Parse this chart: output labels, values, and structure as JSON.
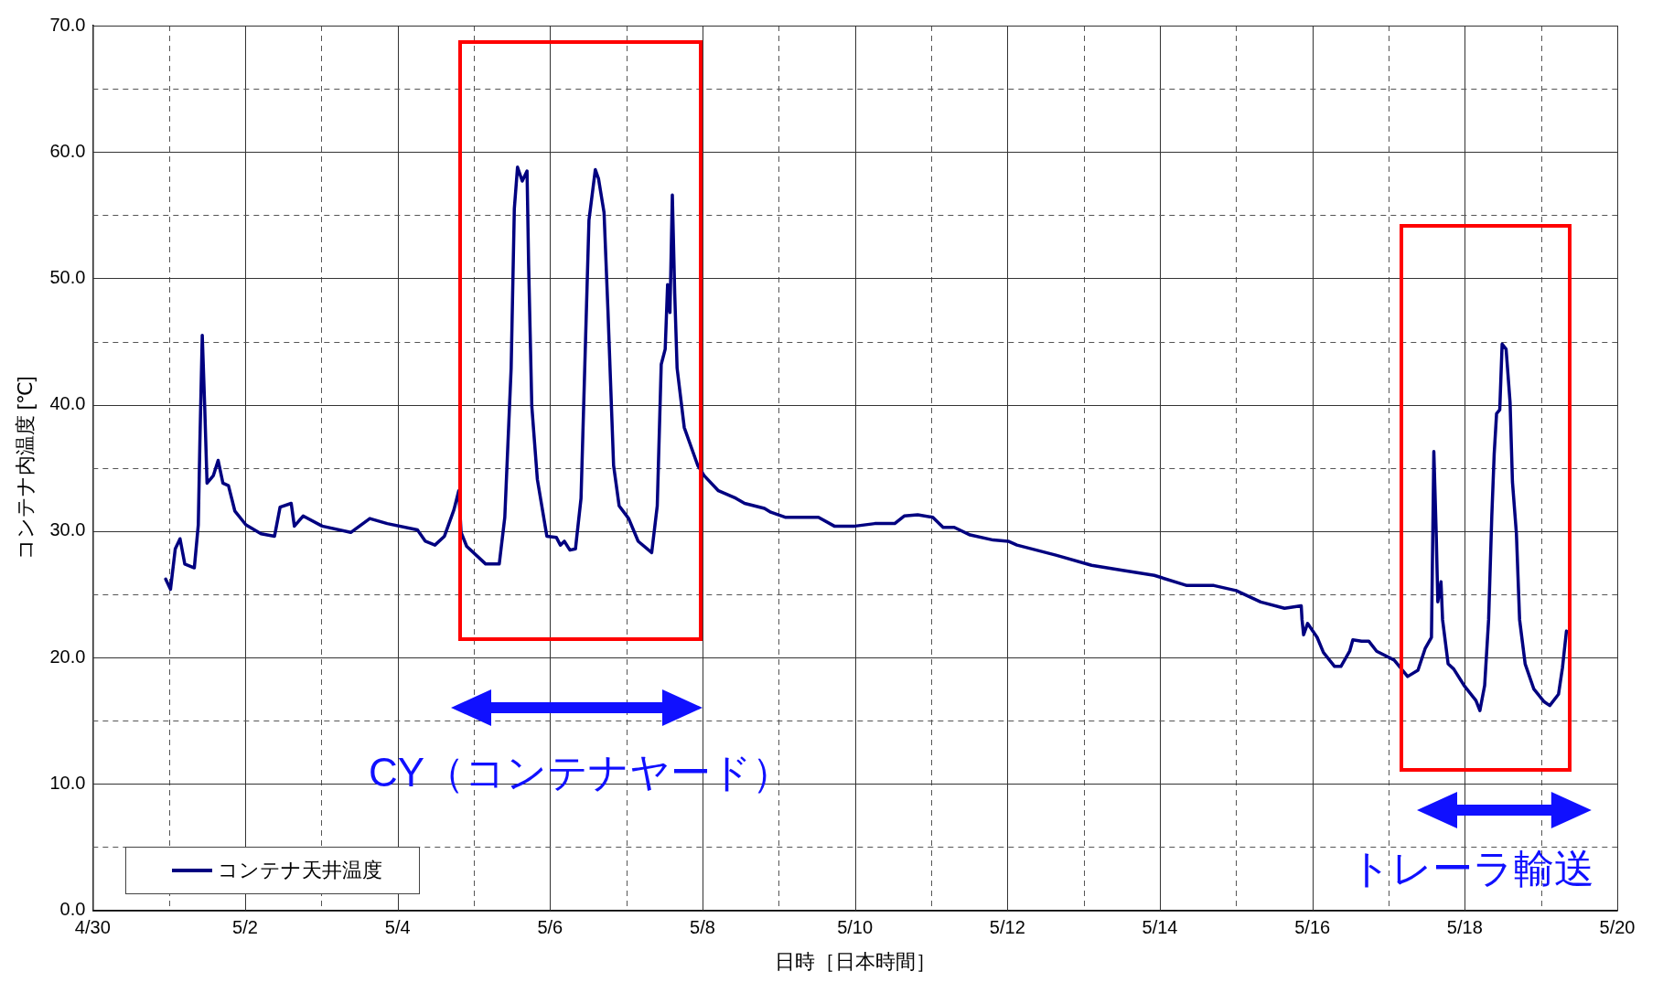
{
  "chart_data": {
    "type": "line",
    "xlabel": "日時［日本時間］",
    "ylabel": "コンテナ内温度 [℃]",
    "xlim": [
      "--04-30",
      "--05-20"
    ],
    "xticks": [
      {
        "value": "--04-30",
        "label": "4/30"
      },
      {
        "value": "--05-01",
        "label": null
      },
      {
        "value": "--05-02",
        "label": "5/2"
      },
      {
        "value": "--05-03",
        "label": null
      },
      {
        "value": "--05-04",
        "label": "5/4"
      },
      {
        "value": "--05-05",
        "label": null
      },
      {
        "value": "--05-06",
        "label": "5/6"
      },
      {
        "value": "--05-07",
        "label": null
      },
      {
        "value": "--05-08",
        "label": "5/8"
      },
      {
        "value": "--05-09",
        "label": null
      },
      {
        "value": "--05-10",
        "label": "5/10"
      },
      {
        "value": "--05-11",
        "label": null
      },
      {
        "value": "--05-12",
        "label": "5/12"
      },
      {
        "value": "--05-13",
        "label": null
      },
      {
        "value": "--05-14",
        "label": "5/14"
      },
      {
        "value": "--05-15",
        "label": null
      },
      {
        "value": "--05-16",
        "label": "5/16"
      },
      {
        "value": "--05-17",
        "label": null
      },
      {
        "value": "--05-18",
        "label": "5/18"
      },
      {
        "value": "--05-19",
        "label": null
      },
      {
        "value": "--05-20",
        "label": "5/20"
      }
    ],
    "ylim": [
      0,
      70
    ],
    "yticks": [
      {
        "value": 0,
        "label": "0.0"
      },
      {
        "value": 5,
        "label": null
      },
      {
        "value": 10,
        "label": "10.0"
      },
      {
        "value": 15,
        "label": null
      },
      {
        "value": 20,
        "label": "20.0"
      },
      {
        "value": 25,
        "label": null
      },
      {
        "value": 30,
        "label": "30.0"
      },
      {
        "value": 35,
        "label": null
      },
      {
        "value": 40,
        "label": "40.0"
      },
      {
        "value": 45,
        "label": null
      },
      {
        "value": 50,
        "label": "50.0"
      },
      {
        "value": 55,
        "label": null
      },
      {
        "value": 60,
        "label": "60.0"
      },
      {
        "value": 65,
        "label": null
      },
      {
        "value": 70,
        "label": "70.0"
      }
    ],
    "grid": true,
    "legend": "bottom left",
    "marker": "none",
    "line_style": "solid",
    "annotations": [
      "CY（コンテナヤード）",
      "トレーラ輸送"
    ],
    "series": [
      {
        "name": "コンテナ天井温度",
        "color": "#000080",
        "x": [
          "--04-30T23:00",
          "--05-01T00:30",
          "--05-01T02:00",
          "--05-01T03:30",
          "--05-01T05:00",
          "--05-01T08:00",
          "--05-01T09:15",
          "--05-01T09:45",
          "--05-01T10:30",
          "--05-01T11:15",
          "--05-01T12:00",
          "--05-01T14:00",
          "--05-01T15:30",
          "--05-01T17:00",
          "--05-01T18:45",
          "--05-01T20:45",
          "--05-02T00:15",
          "--05-02T05:00",
          "--05-02T09:15",
          "--05-02T11:00",
          "--05-02T14:30",
          "--05-02T15:30",
          "--05-02T18:15",
          "--05-03T00:15",
          "--05-03T09:15",
          "--05-03T15:15",
          "--05-03T20:45",
          "--05-04T06:15",
          "--05-04T08:45",
          "--05-04T11:45",
          "--05-04T14:45",
          "--05-04T17:45",
          "--05-04T19:15",
          "--05-04T20:00",
          "--05-04T21:45",
          "--05-05T03:45",
          "--05-05T08:00",
          "--05-05T09:45",
          "--05-05T11:45",
          "--05-05T12:45",
          "--05-05T13:45",
          "--05-05T15:15",
          "--05-05T16:45",
          "--05-05T17:15",
          "--05-05T18:15",
          "--05-05T20:00",
          "--05-05T23:00",
          "--05-06T02:00",
          "--05-06T03:15",
          "--05-06T04:30",
          "--05-06T06:15",
          "--05-06T08:00",
          "--05-06T09:45",
          "--05-06T12:15",
          "--05-06T14:15",
          "--05-06T15:15",
          "--05-06T17:00",
          "--05-06T18:15",
          "--05-06T20:00",
          "--05-06T21:45",
          "--05-07T00:45",
          "--05-07T03:45",
          "--05-07T08:00",
          "--05-07T09:45",
          "--05-07T11:00",
          "--05-07T12:15",
          "--05-07T13:00",
          "--05-07T13:45",
          "--05-07T14:30",
          "--05-07T15:15",
          "--05-07T16:00",
          "--05-07T18:15",
          "--05-07T22:30",
          "--05-08T00:30",
          "--05-08T05:00",
          "--05-08T10:30",
          "--05-08T13:15",
          "--05-08T19:30",
          "--05-08T21:30",
          "--05-09T02:00",
          "--05-09T12:30",
          "--05-09T17:30",
          "--05-10T00:00",
          "--05-10T06:15",
          "--05-10T12:30",
          "--05-10T15:30",
          "--05-10T19:45",
          "--05-11T00:30",
          "--05-11T03:45",
          "--05-11T07:15",
          "--05-11T12:15",
          "--05-11T19:30",
          "--05-12T00:15",
          "--05-12T03:00",
          "--05-12T15:15",
          "--05-13T02:30",
          "--05-13T12:15",
          "--05-13T22:15",
          "--05-14T08:30",
          "--05-14T17:00",
          "--05-15T00:00",
          "--05-15T07:45",
          "--05-15T15:15",
          "--05-15T20:30",
          "--05-15T20:45",
          "--05-15T21:15",
          "--05-15T22:30",
          "--05-16T01:30",
          "--05-16T03:30",
          "--05-16T07:00",
          "--05-16T09:00",
          "--05-16T11:45",
          "--05-16T12:45",
          "--05-16T15:30",
          "--05-16T17:45",
          "--05-16T20:15",
          "--05-17T01:45",
          "--05-17T06:00",
          "--05-17T09:15",
          "--05-17T11:30",
          "--05-17T13:30",
          "--05-17T14:15",
          "--05-17T15:00",
          "--05-17T15:30",
          "--05-17T16:30",
          "--05-17T17:00",
          "--05-17T18:45",
          "--05-17T20:30",
          "--05-17T23:45",
          "--05-18T03:30",
          "--05-18T04:45",
          "--05-18T06:15",
          "--05-18T07:30",
          "--05-18T08:30",
          "--05-18T09:15",
          "--05-18T10:00",
          "--05-18T11:00",
          "--05-18T11:45",
          "--05-18T13:00",
          "--05-18T14:15",
          "--05-18T15:00",
          "--05-18T16:15",
          "--05-18T17:15",
          "--05-18T19:00",
          "--05-18T21:45",
          "--05-19T01:00",
          "--05-19T02:45",
          "--05-19T05:30",
          "--05-19T06:45",
          "--05-19T08:00"
        ],
        "values": [
          26.2,
          25.4,
          28.6,
          29.4,
          27.4,
          27.1,
          30.5,
          37,
          45.5,
          40,
          33.8,
          34.4,
          35.6,
          33.8,
          33.6,
          31.6,
          30.5,
          29.8,
          29.6,
          31.9,
          32.2,
          30.4,
          31.2,
          30.4,
          29.9,
          31.0,
          30.6,
          30.1,
          29.2,
          28.9,
          29.6,
          31.7,
          33.2,
          29.9,
          28.8,
          27.4,
          27.4,
          31.1,
          42.9,
          55.5,
          58.8,
          57.7,
          58.5,
          51.1,
          39.9,
          34.1,
          29.6,
          29.5,
          28.9,
          29.2,
          28.5,
          28.6,
          32.6,
          54.6,
          58.6,
          57.9,
          55.2,
          47.3,
          35.2,
          32,
          31,
          29.2,
          28.3,
          32,
          43.2,
          44.4,
          49.5,
          47.3,
          56.6,
          48.8,
          42.9,
          38.2,
          35.2,
          34.4,
          33.2,
          32.6,
          32.2,
          31.8,
          31.5,
          31.1,
          31.1,
          30.4,
          30.4,
          30.6,
          30.6,
          31.2,
          31.3,
          31.1,
          30.3,
          30.3,
          29.7,
          29.3,
          29.2,
          28.9,
          28.1,
          27.3,
          26.9,
          26.5,
          25.7,
          25.7,
          25.3,
          24.4,
          23.9,
          24.1,
          23.0,
          21.8,
          22.7,
          21.6,
          20.4,
          19.3,
          19.3,
          20.5,
          21.4,
          21.3,
          21.3,
          20.5,
          19.8,
          18.5,
          19.0,
          20.7,
          21.6,
          36.3,
          29.8,
          24.4,
          26.0,
          23.0,
          19.5,
          19.1,
          17.8,
          16.6,
          15.8,
          17.8,
          23.0,
          31.2,
          36.1,
          39.3,
          39.6,
          44.8,
          44.4,
          40.2,
          33.9,
          29.8,
          23.0,
          19.5,
          17.5,
          16.5,
          16.2,
          17.1,
          19.2,
          22.1
        ]
      }
    ]
  }
}
